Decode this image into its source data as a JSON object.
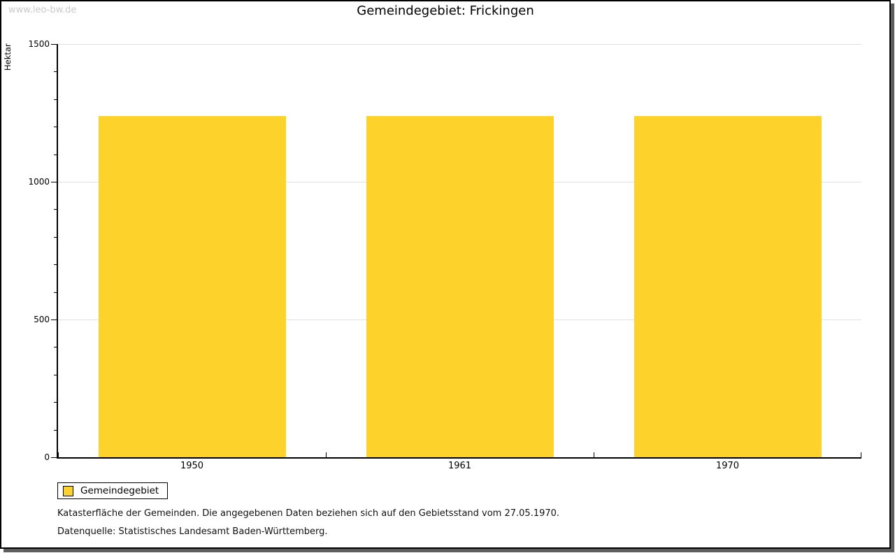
{
  "watermark": "www.leo-bw.de",
  "chart_data": {
    "type": "bar",
    "title": "Gemeindegebiet: Frickingen",
    "categories": [
      "1950",
      "1961",
      "1970"
    ],
    "series": [
      {
        "name": "Gemeindegebiet",
        "values": [
          1239,
          1239,
          1239
        ]
      }
    ],
    "xlabel": "",
    "ylabel": "Hektar",
    "ylim": [
      0,
      1500
    ],
    "yticks": [
      0,
      500,
      1000,
      1500
    ],
    "minor_tick_step": 100,
    "grid": true,
    "legend_position": "bottom-left",
    "colors": {
      "bar": "#FDD32B",
      "grid": "#E0E0E0",
      "axis": "#000000",
      "frame_shadow": "#5E5E5E",
      "watermark": "#C9C9C9"
    }
  },
  "legend": {
    "label": "Gemeindegebiet"
  },
  "footnotes": [
    "Katasterfläche der Gemeinden. Die angegebenen Daten beziehen sich auf den Gebietsstand vom 27.05.1970.",
    "Datenquelle: Statistisches Landesamt Baden-Württemberg."
  ]
}
